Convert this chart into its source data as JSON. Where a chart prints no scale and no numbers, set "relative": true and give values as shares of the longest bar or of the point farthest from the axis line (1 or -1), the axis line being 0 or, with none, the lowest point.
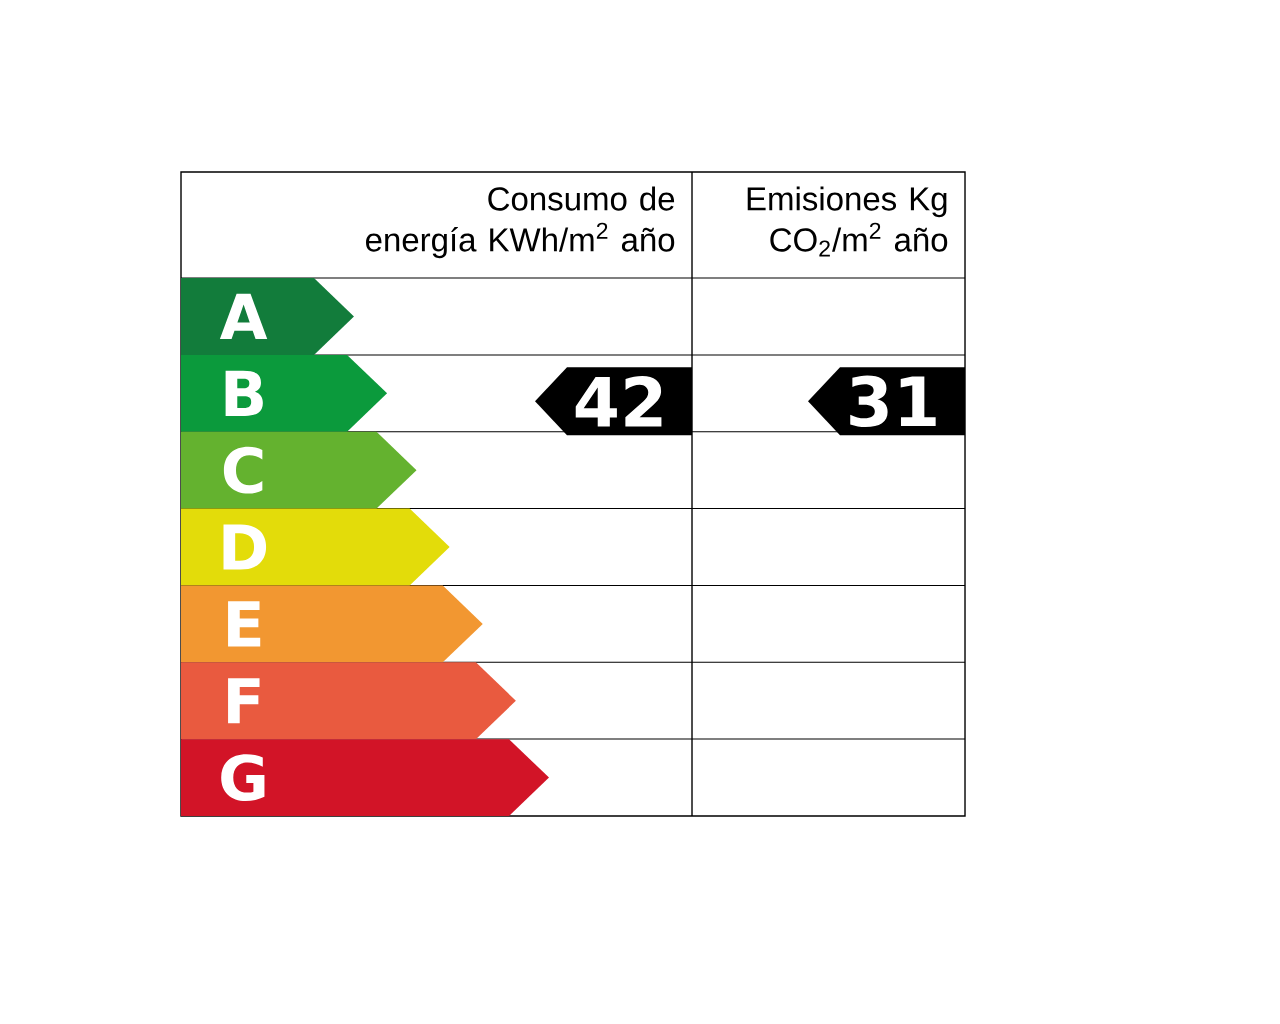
{
  "chart_data": {
    "type": "bar",
    "orientation": "horizontal",
    "relative": true,
    "categories": [
      "A",
      "B",
      "C",
      "D",
      "E",
      "F",
      "G"
    ],
    "values": [
      0.47,
      0.56,
      0.64,
      0.73,
      0.82,
      0.91,
      1.0
    ],
    "colors": [
      "#127c3b",
      "#0b9a3c",
      "#64b22f",
      "#e3dc0a",
      "#f29731",
      "#e95a3f",
      "#d21427"
    ],
    "annotations": [
      "Consumo de energía KWh/m$^{2}$ año",
      "42",
      "Emisiones Kg CO$_{2}$/m$^{2}$ año",
      "31"
    ]
  }
}
